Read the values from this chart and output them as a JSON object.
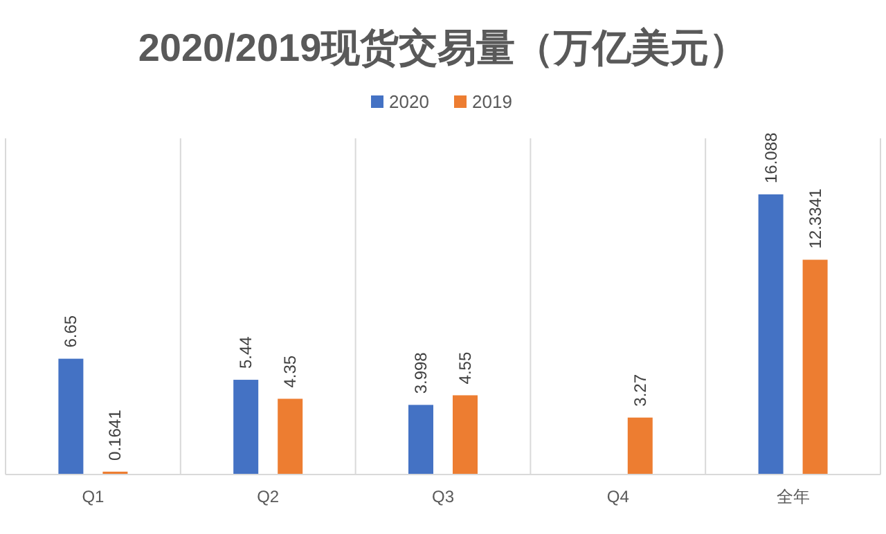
{
  "chart_data": {
    "type": "bar",
    "title": "2020/2019现货交易量（万亿美元）",
    "categories": [
      "Q1",
      "Q2",
      "Q3",
      "Q4",
      "全年"
    ],
    "series": [
      {
        "name": "2020",
        "color": "#4472c4",
        "values": [
          6.65,
          5.44,
          3.998,
          null,
          16.088
        ]
      },
      {
        "name": "2019",
        "color": "#ed7d31",
        "values": [
          0.1641,
          4.35,
          4.55,
          3.27,
          12.3341
        ]
      }
    ],
    "data_labels": true,
    "grid": "x",
    "legend": "top"
  }
}
